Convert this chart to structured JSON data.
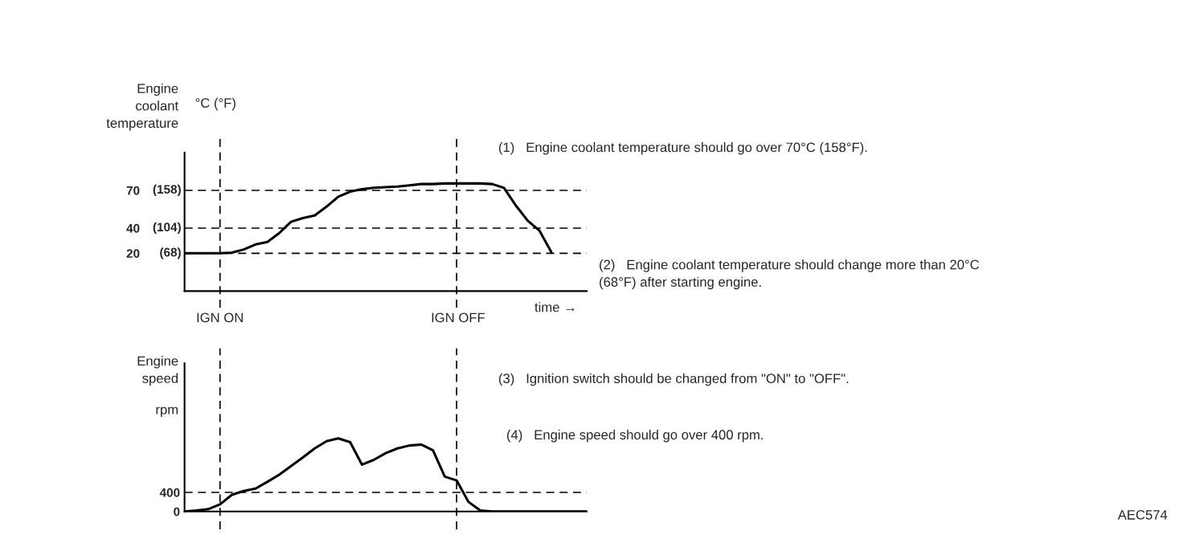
{
  "chart_data": [
    {
      "type": "line",
      "ylabel": "Engine\ncoolant\ntemperature",
      "xlabel": "time →",
      "tick_labels": "y",
      "categories": [
        null,
        null,
        null,
        null,
        null,
        null,
        null,
        null,
        null,
        null,
        null,
        null,
        null,
        null,
        null,
        null,
        null,
        null,
        null,
        null,
        null,
        null,
        null,
        null,
        null,
        null,
        null,
        null,
        null,
        null,
        null,
        null,
        null,
        null,
        null
      ],
      "series": [
        {
          "color": "#000000",
          "values": [
            20,
            20,
            20,
            20,
            20.5,
            23,
            27,
            29,
            36,
            45,
            48,
            50,
            57,
            65,
            69,
            71,
            72,
            72.5,
            73,
            74,
            75,
            75,
            75.5,
            75.5,
            75.5,
            75.5,
            75,
            72,
            58,
            46,
            38,
            21,
            null,
            null,
            null
          ]
        }
      ],
      "ylim": [
        -10,
        100
      ],
      "yticks": [
        20,
        40,
        70
      ],
      "ref_lines": [
        {
          "axis": "y",
          "value": 70,
          "line_style": "dashed"
        },
        {
          "axis": "y",
          "value": 40,
          "line_style": "dashed"
        },
        {
          "axis": "y",
          "value": 20,
          "line_style": "dashed"
        }
      ],
      "annotations": [
        "(68)",
        "(104)",
        "(158)",
        "IGN ON",
        "IGN OFF",
        "°C (°F)",
        "(1)   Engine coolant temperature should go over 70°C (158°F).",
        "(2)   Engine coolant temperature should change more than 20°C\n(68°F) after starting engine."
      ]
    },
    {
      "type": "line",
      "ylabel": "Engine\nspeed",
      "tick_labels": "y",
      "categories": [
        null,
        null,
        null,
        null,
        null,
        null,
        null,
        null,
        null,
        null,
        null,
        null,
        null,
        null,
        null,
        null,
        null,
        null,
        null,
        null,
        null,
        null,
        null,
        null,
        null,
        null,
        null,
        null,
        null,
        null,
        null,
        null,
        null,
        null,
        null
      ],
      "series": [
        {
          "color": "#000000",
          "values": [
            0,
            20,
            50,
            150,
            350,
            430,
            480,
            620,
            770,
            950,
            1130,
            1320,
            1470,
            1530,
            1450,
            980,
            1080,
            1220,
            1320,
            1380,
            1400,
            1280,
            730,
            650,
            200,
            20,
            0,
            0,
            0,
            0,
            0,
            0,
            0,
            0,
            0
          ]
        }
      ],
      "ylim": [
        0,
        3100
      ],
      "yticks": [
        0,
        400
      ],
      "ref_lines": [
        {
          "axis": "y",
          "value": 400,
          "line_style": "dashed"
        }
      ],
      "annotations": [
        "rpm",
        "(3)   Ignition switch should be changed from \"ON\" to \"OFF\".",
        "(4)   Engine speed should go over 400 rpm.",
        "AEC574"
      ]
    }
  ]
}
